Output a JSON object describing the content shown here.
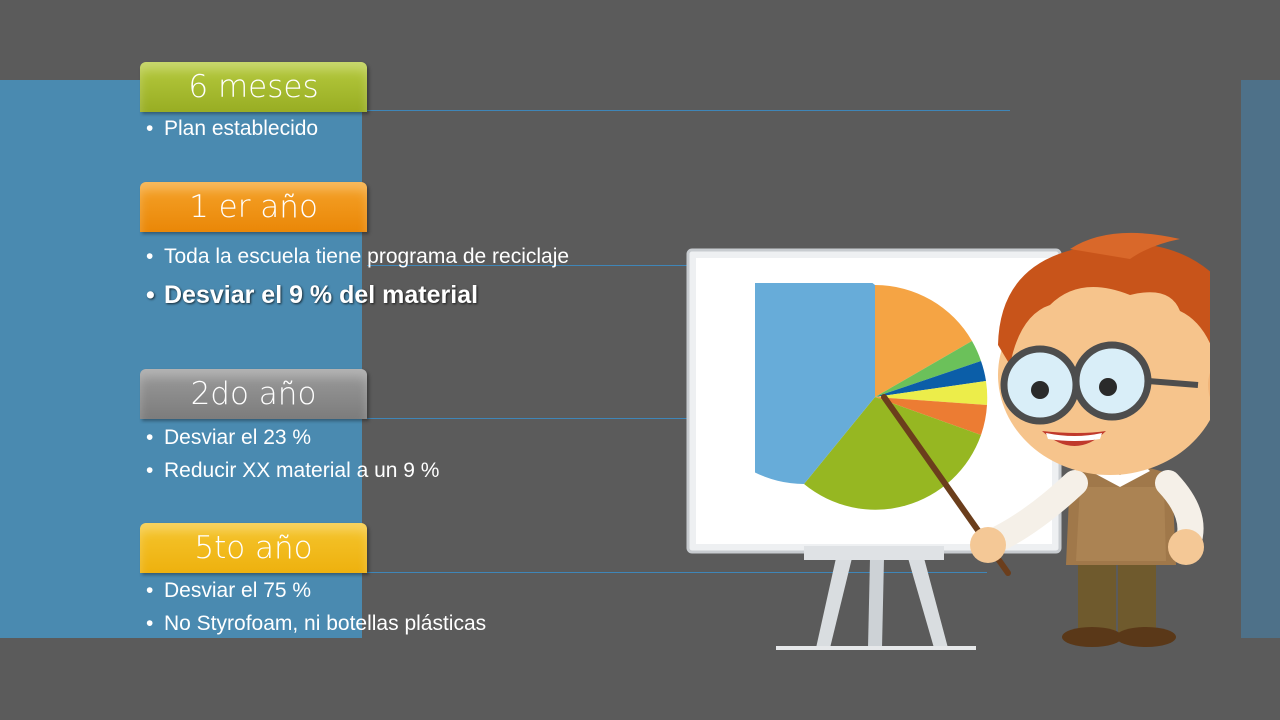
{
  "milestones": [
    {
      "title": "6 meses",
      "bullets": [
        "Plan establecido"
      ]
    },
    {
      "title": "1 er año",
      "bullets": [
        "Toda la escuela tiene programa de reciclaje",
        "Desviar el 9 % del material"
      ]
    },
    {
      "title": "2do año",
      "bullets": [
        "Desviar el 23 %",
        "Reducir XX material a un 9 %"
      ]
    },
    {
      "title": "5to año",
      "bullets": [
        "Desviar el 75 %",
        "No Styrofoam, ni botellas plásticas"
      ]
    }
  ],
  "colors": {
    "background": "#5b5b5b",
    "left_panel": "#4a8ab0",
    "tab_6m": "#a4b92c",
    "tab_1y": "#f0900f",
    "tab_2y": "#8a8a8a",
    "tab_5y": "#f2bb1c"
  },
  "illustration": {
    "icons": [
      "pie-chart-icon",
      "whiteboard-icon",
      "teacher-cartoon-icon"
    ]
  }
}
